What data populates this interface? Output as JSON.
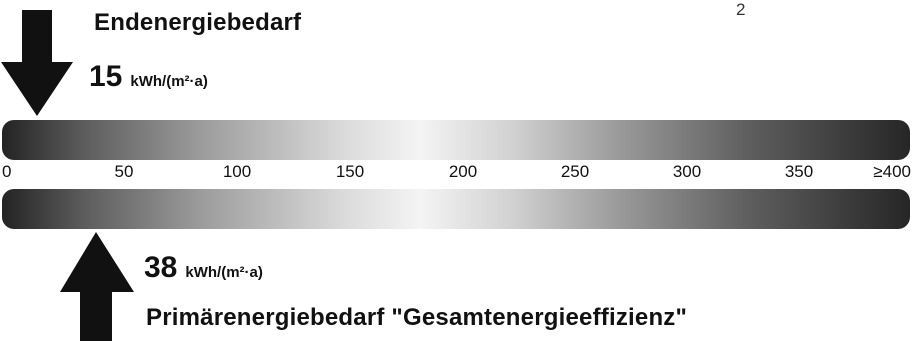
{
  "page_mark": "2",
  "final_energy": {
    "title": "Endenergiebedarf",
    "value": "15",
    "unit": "kWh/(m²·a)"
  },
  "primary_energy": {
    "title": "Primärenergiebedarf \"Gesamtenergieeffizienz\"",
    "value": "38",
    "unit": "kWh/(m²·a)"
  },
  "scale": {
    "ticks": [
      "0",
      "50",
      "100",
      "150",
      "200",
      "250",
      "300",
      "350",
      "≥400"
    ],
    "max": 400
  },
  "colors": {
    "arrow": "#111111",
    "bar_dark": "#232323",
    "bar_light": "#f4f4f4"
  }
}
